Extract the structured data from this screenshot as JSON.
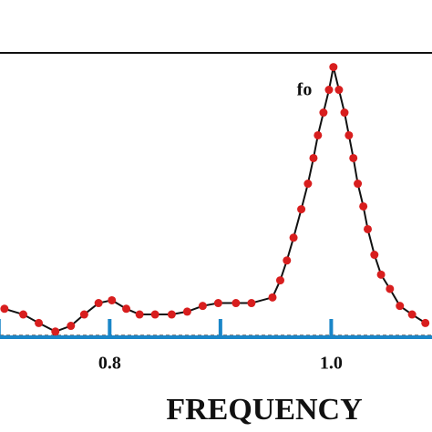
{
  "chart_data": {
    "type": "line",
    "x_label": "FREQUENCY",
    "annotation": "fo",
    "xlim": [
      0.701,
      1.091
    ],
    "ylim": [
      0,
      1
    ],
    "xticks": [
      {
        "value": 0.8,
        "label": "0.8"
      },
      {
        "value": 1.0,
        "label": "1.0"
      }
    ],
    "minor_xticks": [
      0.7,
      0.9
    ],
    "axis_color": "#1a86c8",
    "series": [
      {
        "color": "#d81e1e",
        "line_color": "#111111",
        "x": [
          0.705,
          0.722,
          0.736,
          0.751,
          0.765,
          0.777,
          0.79,
          0.802,
          0.815,
          0.827,
          0.841,
          0.856,
          0.87,
          0.884,
          0.898,
          0.914,
          0.928,
          0.947,
          0.954,
          0.96,
          0.966,
          0.973,
          0.979,
          0.984,
          0.988,
          0.993,
          0.998,
          1.002,
          1.007,
          1.012,
          1.016,
          1.02,
          1.024,
          1.029,
          1.033,
          1.039,
          1.045,
          1.053,
          1.062,
          1.073,
          1.085
        ],
        "values": [
          0.1,
          0.08,
          0.05,
          0.02,
          0.04,
          0.08,
          0.12,
          0.13,
          0.1,
          0.08,
          0.08,
          0.08,
          0.09,
          0.11,
          0.12,
          0.12,
          0.12,
          0.14,
          0.2,
          0.27,
          0.35,
          0.45,
          0.54,
          0.63,
          0.71,
          0.79,
          0.87,
          0.95,
          0.87,
          0.79,
          0.71,
          0.63,
          0.54,
          0.46,
          0.38,
          0.29,
          0.22,
          0.17,
          0.11,
          0.08,
          0.05
        ]
      }
    ]
  }
}
